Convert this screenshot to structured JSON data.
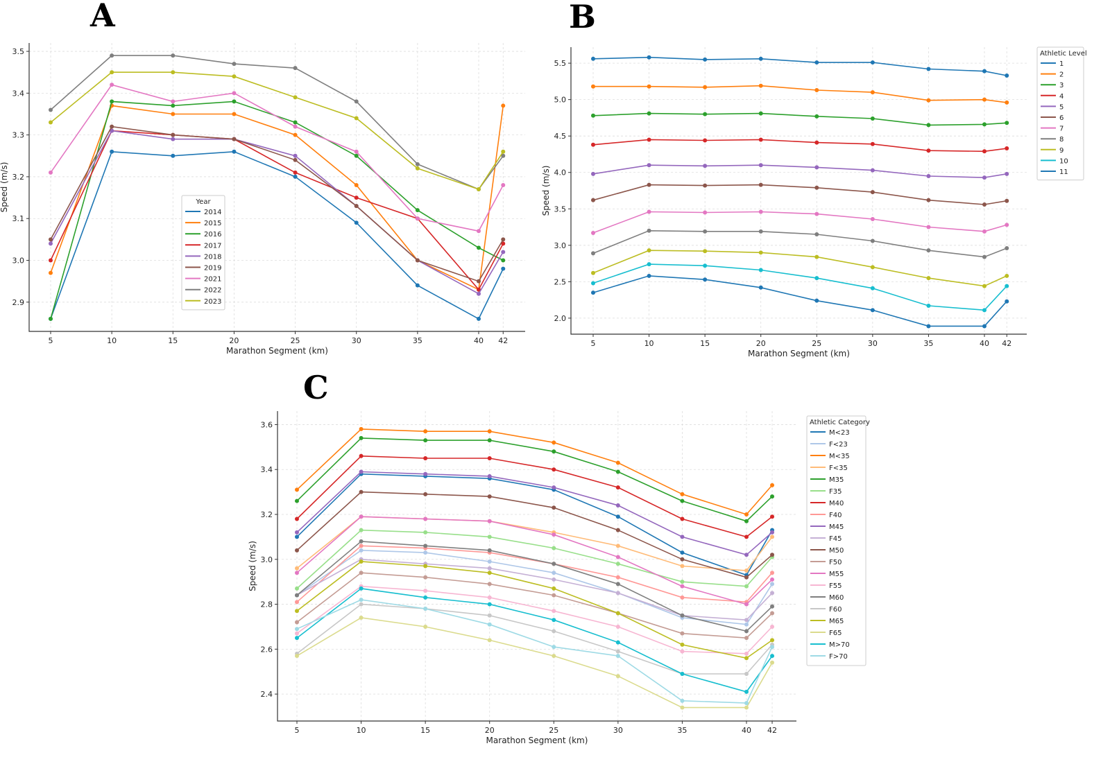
{
  "chart_data": [
    {
      "panel": "A",
      "type": "line",
      "xlabel": "Marathon Segment (km)",
      "ylabel": "Speed (m/s)",
      "x": [
        5,
        10,
        15,
        20,
        25,
        30,
        35,
        40,
        42
      ],
      "xticks": [
        "5",
        "10",
        "15",
        "20",
        "25",
        "30",
        "35",
        "40",
        "42"
      ],
      "yticks": [
        "2.9",
        "3.0",
        "3.1",
        "3.2",
        "3.3",
        "3.4",
        "3.5"
      ],
      "ylim": [
        2.83,
        3.52
      ],
      "grid": true,
      "legend_title": "Year",
      "legend_position": "center",
      "series": [
        {
          "name": "2014",
          "color": "#1f77b4",
          "values": [
            2.86,
            3.26,
            3.25,
            3.26,
            3.2,
            3.09,
            2.94,
            2.86,
            2.98
          ]
        },
        {
          "name": "2015",
          "color": "#ff7f0e",
          "values": [
            2.97,
            3.37,
            3.35,
            3.35,
            3.3,
            3.18,
            3.0,
            2.93,
            3.37
          ]
        },
        {
          "name": "2016",
          "color": "#2ca02c",
          "values": [
            2.86,
            3.38,
            3.37,
            3.38,
            3.33,
            3.25,
            3.12,
            3.03,
            3.0
          ]
        },
        {
          "name": "2017",
          "color": "#d62728",
          "values": [
            3.0,
            3.31,
            3.3,
            3.29,
            3.21,
            3.15,
            3.1,
            2.93,
            3.04
          ]
        },
        {
          "name": "2018",
          "color": "#9467bd",
          "values": [
            3.04,
            3.31,
            3.29,
            3.29,
            3.25,
            3.13,
            3.0,
            2.92,
            3.02
          ]
        },
        {
          "name": "2019",
          "color": "#8c564b",
          "values": [
            3.05,
            3.32,
            3.3,
            3.29,
            3.24,
            3.13,
            3.0,
            2.95,
            3.05
          ]
        },
        {
          "name": "2021",
          "color": "#e377c2",
          "values": [
            3.21,
            3.42,
            3.38,
            3.4,
            3.32,
            3.26,
            3.1,
            3.07,
            3.18
          ]
        },
        {
          "name": "2022",
          "color": "#7f7f7f",
          "values": [
            3.36,
            3.49,
            3.49,
            3.47,
            3.46,
            3.38,
            3.23,
            3.17,
            3.25
          ]
        },
        {
          "name": "2023",
          "color": "#bcbd22",
          "values": [
            3.33,
            3.45,
            3.45,
            3.44,
            3.39,
            3.34,
            3.22,
            3.17,
            3.26
          ]
        }
      ]
    },
    {
      "panel": "B",
      "type": "line",
      "xlabel": "Marathon Segment (km)",
      "ylabel": "Speed (m/s)",
      "x": [
        5,
        10,
        15,
        20,
        25,
        30,
        35,
        40,
        42
      ],
      "xticks": [
        "5",
        "10",
        "15",
        "20",
        "25",
        "30",
        "35",
        "40",
        "42"
      ],
      "yticks": [
        "2.0",
        "2.5",
        "3.0",
        "3.5",
        "4.0",
        "4.5",
        "5.0",
        "5.5"
      ],
      "ylim": [
        1.78,
        5.72
      ],
      "grid": true,
      "legend_title": "Athletic Level",
      "legend_position": "outside-top-right",
      "series": [
        {
          "name": "1",
          "color": "#1f77b4",
          "values": [
            5.56,
            5.58,
            5.55,
            5.56,
            5.51,
            5.51,
            5.42,
            5.39,
            5.33
          ]
        },
        {
          "name": "2",
          "color": "#ff7f0e",
          "values": [
            5.18,
            5.18,
            5.17,
            5.19,
            5.13,
            5.1,
            4.99,
            5.0,
            4.96
          ]
        },
        {
          "name": "3",
          "color": "#2ca02c",
          "values": [
            4.78,
            4.81,
            4.8,
            4.81,
            4.77,
            4.74,
            4.65,
            4.66,
            4.68
          ]
        },
        {
          "name": "4",
          "color": "#d62728",
          "values": [
            4.38,
            4.45,
            4.44,
            4.45,
            4.41,
            4.39,
            4.3,
            4.29,
            4.33
          ]
        },
        {
          "name": "5",
          "color": "#9467bd",
          "values": [
            3.98,
            4.1,
            4.09,
            4.1,
            4.07,
            4.03,
            3.95,
            3.93,
            3.98
          ]
        },
        {
          "name": "6",
          "color": "#8c564b",
          "values": [
            3.62,
            3.83,
            3.82,
            3.83,
            3.79,
            3.73,
            3.62,
            3.56,
            3.61
          ]
        },
        {
          "name": "7",
          "color": "#e377c2",
          "values": [
            3.17,
            3.46,
            3.45,
            3.46,
            3.43,
            3.36,
            3.25,
            3.19,
            3.28
          ]
        },
        {
          "name": "8",
          "color": "#7f7f7f",
          "values": [
            2.89,
            3.2,
            3.19,
            3.19,
            3.15,
            3.06,
            2.93,
            2.84,
            2.96
          ]
        },
        {
          "name": "9",
          "color": "#bcbd22",
          "values": [
            2.62,
            2.93,
            2.92,
            2.9,
            2.84,
            2.7,
            2.55,
            2.44,
            2.58
          ]
        },
        {
          "name": "10",
          "color": "#17becf",
          "values": [
            2.48,
            2.74,
            2.72,
            2.66,
            2.55,
            2.41,
            2.17,
            2.11,
            2.44
          ]
        },
        {
          "name": "11",
          "color": "#1f77b4",
          "values": [
            2.35,
            2.58,
            2.53,
            2.42,
            2.24,
            2.11,
            1.89,
            1.89,
            2.23
          ]
        }
      ]
    },
    {
      "panel": "C",
      "type": "line",
      "xlabel": "Marathon Segment (km)",
      "ylabel": "Speed (m/s)",
      "x": [
        5,
        10,
        15,
        20,
        25,
        30,
        35,
        40,
        42
      ],
      "xticks": [
        "5",
        "10",
        "15",
        "20",
        "25",
        "30",
        "35",
        "40",
        "42"
      ],
      "yticks": [
        "2.4",
        "2.6",
        "2.8",
        "3.0",
        "3.2",
        "3.4",
        "3.6"
      ],
      "ylim": [
        2.28,
        3.66
      ],
      "grid": true,
      "legend_title": "Athletic Category",
      "legend_position": "outside-top-right",
      "series": [
        {
          "name": "M<23",
          "color": "#1f77b4",
          "values": [
            3.1,
            3.38,
            3.37,
            3.36,
            3.31,
            3.19,
            3.03,
            2.93,
            3.13
          ]
        },
        {
          "name": "F<23",
          "color": "#aec7e8",
          "values": [
            2.84,
            3.04,
            3.03,
            2.99,
            2.94,
            2.85,
            2.74,
            2.71,
            2.89
          ]
        },
        {
          "name": "M<35",
          "color": "#ff7f0e",
          "values": [
            3.31,
            3.58,
            3.57,
            3.57,
            3.52,
            3.43,
            3.29,
            3.2,
            3.33
          ]
        },
        {
          "name": "F<35",
          "color": "#ffbb78",
          "values": [
            2.96,
            3.19,
            3.18,
            3.17,
            3.12,
            3.06,
            2.97,
            2.95,
            3.1
          ]
        },
        {
          "name": "M35",
          "color": "#2ca02c",
          "values": [
            3.26,
            3.54,
            3.53,
            3.53,
            3.48,
            3.39,
            3.26,
            3.17,
            3.28
          ]
        },
        {
          "name": "F35",
          "color": "#98df8a",
          "values": [
            2.87,
            3.13,
            3.12,
            3.1,
            3.05,
            2.98,
            2.9,
            2.88,
            3.01
          ]
        },
        {
          "name": "M40",
          "color": "#d62728",
          "values": [
            3.18,
            3.46,
            3.45,
            3.45,
            3.4,
            3.32,
            3.18,
            3.1,
            3.19
          ]
        },
        {
          "name": "F40",
          "color": "#ff9896",
          "values": [
            2.81,
            3.06,
            3.05,
            3.03,
            2.98,
            2.92,
            2.83,
            2.81,
            2.94
          ]
        },
        {
          "name": "M45",
          "color": "#9467bd",
          "values": [
            3.12,
            3.39,
            3.38,
            3.37,
            3.32,
            3.24,
            3.1,
            3.02,
            3.12
          ]
        },
        {
          "name": "F45",
          "color": "#c5b0d5",
          "values": [
            2.84,
            3.0,
            2.98,
            2.96,
            2.91,
            2.85,
            2.75,
            2.73,
            2.85
          ]
        },
        {
          "name": "M50",
          "color": "#8c564b",
          "values": [
            3.04,
            3.3,
            3.29,
            3.28,
            3.23,
            3.13,
            3.0,
            2.92,
            3.02
          ]
        },
        {
          "name": "F50",
          "color": "#c49c94",
          "values": [
            2.72,
            2.94,
            2.92,
            2.89,
            2.84,
            2.76,
            2.67,
            2.65,
            2.76
          ]
        },
        {
          "name": "M55",
          "color": "#e377c2",
          "values": [
            2.94,
            3.19,
            3.18,
            3.17,
            3.11,
            3.01,
            2.88,
            2.8,
            2.91
          ]
        },
        {
          "name": "F55",
          "color": "#f7b6d2",
          "values": [
            2.67,
            2.88,
            2.86,
            2.83,
            2.77,
            2.7,
            2.59,
            2.58,
            2.7
          ]
        },
        {
          "name": "M60",
          "color": "#7f7f7f",
          "values": [
            2.84,
            3.08,
            3.06,
            3.04,
            2.98,
            2.89,
            2.75,
            2.68,
            2.79
          ]
        },
        {
          "name": "F60",
          "color": "#c7c7c7",
          "values": [
            2.58,
            2.8,
            2.78,
            2.75,
            2.68,
            2.59,
            2.49,
            2.49,
            2.62
          ]
        },
        {
          "name": "M65",
          "color": "#bcbd22",
          "values": [
            2.77,
            2.99,
            2.97,
            2.94,
            2.87,
            2.76,
            2.62,
            2.56,
            2.64
          ]
        },
        {
          "name": "F65",
          "color": "#dbdb8d",
          "values": [
            2.57,
            2.74,
            2.7,
            2.64,
            2.57,
            2.48,
            2.34,
            2.34,
            2.54
          ]
        },
        {
          "name": "M>70",
          "color": "#17becf",
          "values": [
            2.65,
            2.87,
            2.83,
            2.8,
            2.73,
            2.63,
            2.49,
            2.41,
            2.57
          ]
        },
        {
          "name": "F>70",
          "color": "#9edae5",
          "values": [
            2.69,
            2.82,
            2.78,
            2.71,
            2.61,
            2.57,
            2.37,
            2.36,
            2.61
          ]
        }
      ]
    }
  ]
}
